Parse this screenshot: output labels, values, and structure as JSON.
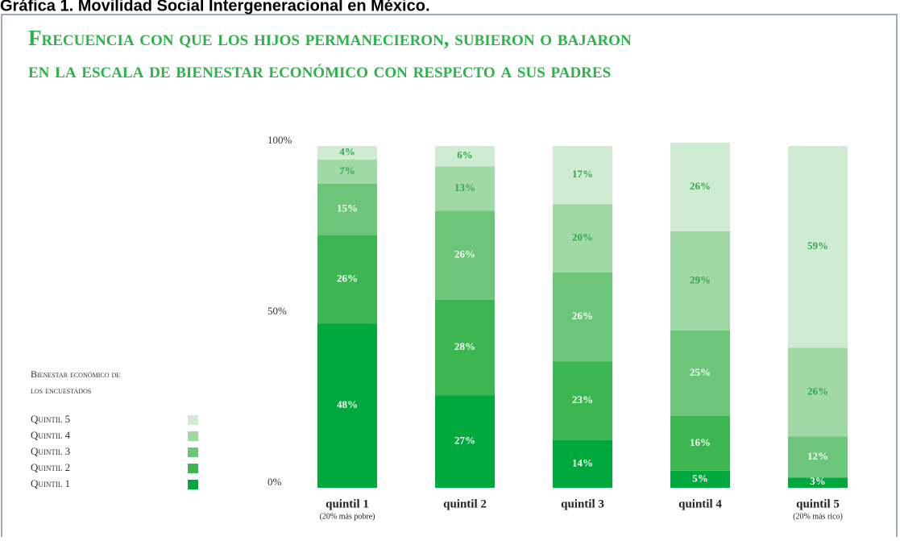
{
  "header": "Gráfica 1. Movilidad Social Intergeneracional en México.",
  "chart_data": {
    "type": "stacked-bar",
    "title": [
      "Frecuencia con que los hijos permanecieron, subieron o bajaron",
      "en la escala de bienestar económico con respecto a sus padres"
    ],
    "legend_title": [
      "Bienestar económico de",
      "los encuestados"
    ],
    "categories": [
      "quintil 1",
      "quintil 2",
      "quintil 3",
      "quintil 4",
      "quintil 5"
    ],
    "category_notes": [
      "(20% más pobre)",
      null,
      null,
      null,
      "(20% más rico)"
    ],
    "ylim": [
      0,
      100
    ],
    "yticks": [
      {
        "value": 0,
        "label": "0%"
      },
      {
        "value": 50,
        "label": "50%"
      },
      {
        "value": 100,
        "label": "100%"
      }
    ],
    "series": [
      {
        "name": "Quintil 1",
        "color": "#00a83e",
        "label_color": "#ffffff",
        "values": [
          48,
          27,
          14,
          5,
          3
        ],
        "value_labels": [
          "48%",
          "27%",
          "14%",
          "5%",
          "3%"
        ]
      },
      {
        "name": "Quintil 2",
        "color": "#3db651",
        "label_color": "#ffffff",
        "values": [
          26,
          28,
          23,
          16,
          null
        ],
        "value_labels": [
          "26%",
          "28%",
          "23%",
          "16%",
          null
        ]
      },
      {
        "name": "Quintil 3",
        "color": "#6dc57a",
        "label_color": "#ffffff",
        "values": [
          15,
          26,
          26,
          25,
          12
        ],
        "value_labels": [
          "15%",
          "26%",
          "26%",
          "25%",
          "12%"
        ]
      },
      {
        "name": "Quintil 4",
        "color": "#a0d8a6",
        "label_color": "#2fa84f",
        "values": [
          7,
          13,
          20,
          29,
          26
        ],
        "value_labels": [
          "7%",
          "13%",
          "20%",
          "29%",
          "26%"
        ]
      },
      {
        "name": "Quintil 5",
        "color": "#cfecd2",
        "label_color": "#2fa84f",
        "values": [
          4,
          6,
          17,
          26,
          59
        ],
        "value_labels": [
          "4%",
          "6%",
          "17%",
          "26%",
          "59%"
        ]
      }
    ]
  }
}
